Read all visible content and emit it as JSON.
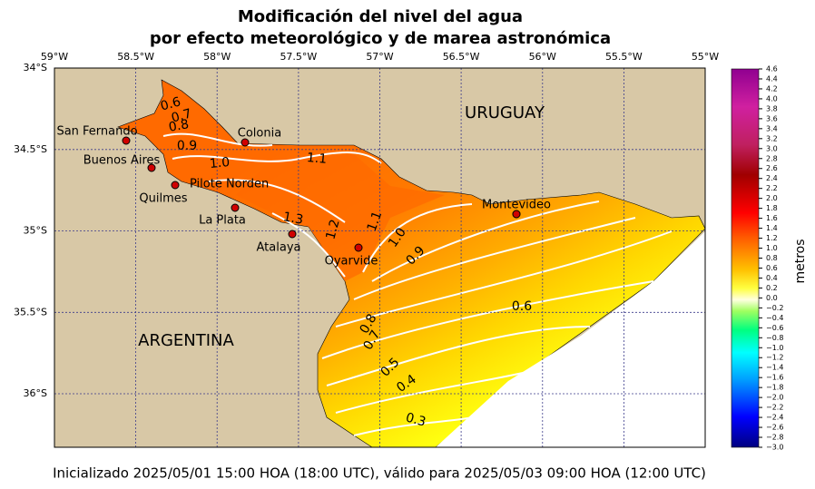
{
  "header": {
    "title_line1": "Modificación del nivel del agua",
    "title_line2": "por efecto meteorológico y de marea astronómica"
  },
  "map": {
    "lon_ticks": [
      "59°W",
      "58.5°W",
      "58°W",
      "57.5°W",
      "57°W",
      "56.5°W",
      "56°W",
      "55.5°W",
      "55°W"
    ],
    "lat_ticks": [
      "34°S",
      "34.5°S",
      "35°S",
      "35.5°S",
      "36°S"
    ],
    "countries": [
      "URUGUAY",
      "ARGENTINA"
    ],
    "stations": [
      "San Fernando",
      "Buenos Aires",
      "Colonia",
      "Pilote Norden",
      "Quilmes",
      "La Plata",
      "Atalaya",
      "Oyarvide",
      "Montevideo"
    ],
    "contour_labels": [
      "0.6",
      "0.7",
      "0.8",
      "0.9",
      "1.0",
      "1.1",
      "1.3",
      "1.2",
      "1.1",
      "1.0",
      "0.9",
      "0.8",
      "0.7",
      "0.6",
      "0.5",
      "0.4",
      "0.3"
    ]
  },
  "colorbar": {
    "label": "metros",
    "ticks": [
      {
        "value": 4.6,
        "label": "4.6"
      },
      {
        "value": 4.4,
        "label": "4.4"
      },
      {
        "value": 4.2,
        "label": "4.2"
      },
      {
        "value": 4.0,
        "label": "4.0"
      },
      {
        "value": 3.8,
        "label": "3.8"
      },
      {
        "value": 3.6,
        "label": "3.6"
      },
      {
        "value": 3.4,
        "label": "3.4"
      },
      {
        "value": 3.2,
        "label": "3.2"
      },
      {
        "value": 3.0,
        "label": "3.0"
      },
      {
        "value": 2.8,
        "label": "2.8"
      },
      {
        "value": 2.6,
        "label": "2.6"
      },
      {
        "value": 2.4,
        "label": "2.4"
      },
      {
        "value": 2.2,
        "label": "2.2"
      },
      {
        "value": 2.0,
        "label": "2.0"
      },
      {
        "value": 1.8,
        "label": "1.8"
      },
      {
        "value": 1.6,
        "label": "1.6"
      },
      {
        "value": 1.4,
        "label": "1.4"
      },
      {
        "value": 1.2,
        "label": "1.2"
      },
      {
        "value": 1.0,
        "label": "1.0"
      },
      {
        "value": 0.8,
        "label": "0.8"
      },
      {
        "value": 0.6,
        "label": "0.6"
      },
      {
        "value": 0.4,
        "label": "0.4"
      },
      {
        "value": 0.2,
        "label": "0.2"
      },
      {
        "value": 0.0,
        "label": "0.0"
      },
      {
        "value": -0.2,
        "label": "−0.2"
      },
      {
        "value": -0.4,
        "label": "−0.4"
      },
      {
        "value": -0.6,
        "label": "−0.6"
      },
      {
        "value": -0.8,
        "label": "−0.8"
      },
      {
        "value": -1.0,
        "label": "−1.0"
      },
      {
        "value": -1.2,
        "label": "−1.2"
      },
      {
        "value": -1.4,
        "label": "−1.4"
      },
      {
        "value": -1.6,
        "label": "−1.6"
      },
      {
        "value": -1.8,
        "label": "−1.8"
      },
      {
        "value": -2.0,
        "label": "−2.0"
      },
      {
        "value": -2.2,
        "label": "−2.2"
      },
      {
        "value": -2.4,
        "label": "−2.4"
      },
      {
        "value": -2.6,
        "label": "−2.6"
      },
      {
        "value": -2.8,
        "label": "−2.8"
      },
      {
        "value": -3.0,
        "label": "−3.0"
      }
    ]
  },
  "footer": "Inicializado 2025/05/01 15:00 HOA (18:00 UTC), válido para 2025/05/03 09:00 HOA (12:00 UTC)"
}
